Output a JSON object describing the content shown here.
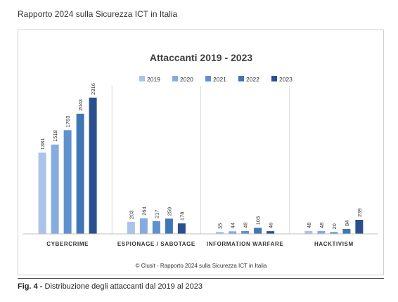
{
  "header": {
    "title": "Rapporto 2024 sulla Sicurezza ICT in Italia"
  },
  "caption": {
    "label": "Fig. 4 -",
    "text": "Distribuzione degli attaccanti dal 2019 al 2023"
  },
  "chart_data": {
    "type": "bar",
    "title": "Attaccanti 2019 - 2023",
    "source": "© Clusit - Rapporto 2024 sulla Sicurezza ICT in Italia",
    "categories": [
      "CYBERCRIME",
      "ESPIONAGE / SABOTAGE",
      "INFORMATION WARFARE",
      "HACKTIVISM"
    ],
    "series": [
      {
        "name": "2019",
        "color": "#a9c4e8",
        "values": [
          1381,
          203,
          35,
          48
        ]
      },
      {
        "name": "2020",
        "color": "#86acdf",
        "values": [
          1518,
          264,
          44,
          48
        ]
      },
      {
        "name": "2021",
        "color": "#5f91cf",
        "values": [
          1763,
          217,
          49,
          20
        ]
      },
      {
        "name": "2022",
        "color": "#3f76b8",
        "values": [
          2043,
          259,
          103,
          84
        ]
      },
      {
        "name": "2023",
        "color": "#2a4f8f",
        "values": [
          2316,
          178,
          46,
          239
        ]
      }
    ],
    "ylim": [
      0,
      2500
    ],
    "legend_position": "top",
    "grid": false
  }
}
